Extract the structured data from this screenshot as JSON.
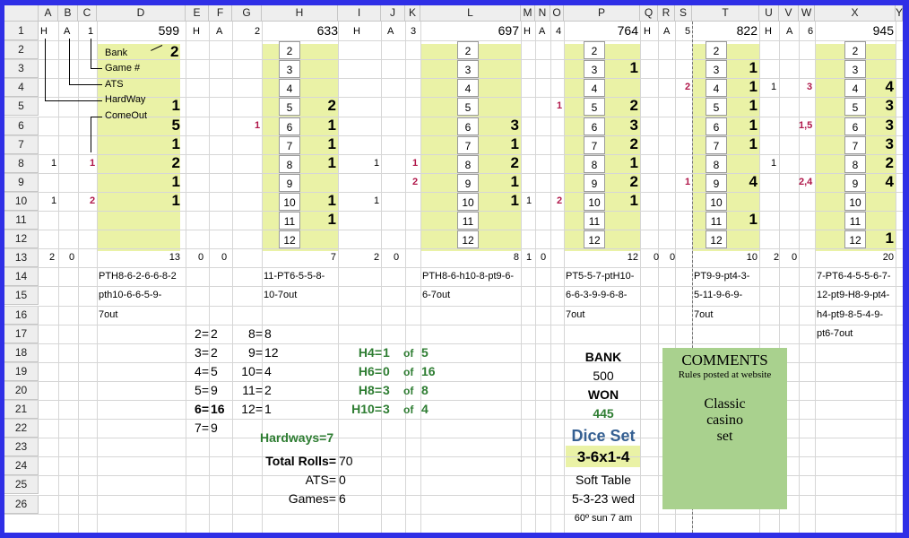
{
  "columns": [
    "A",
    "B",
    "C",
    "D",
    "E",
    "F",
    "G",
    "H",
    "I",
    "J",
    "K",
    "L",
    "M",
    "N",
    "O",
    "P",
    "Q",
    "R",
    "S",
    "T",
    "U",
    "V",
    "W",
    "X",
    "Y"
  ],
  "rows": [
    "1",
    "2",
    "3",
    "4",
    "5",
    "6",
    "7",
    "8",
    "9",
    "10",
    "11",
    "12",
    "13",
    "14",
    "15",
    "16",
    "17",
    "18",
    "19",
    "20",
    "21",
    "22",
    "23",
    "24",
    "25",
    "26"
  ],
  "row1": {
    "h": "H",
    "a": "A",
    "games": [
      "1",
      "2",
      "3",
      "4",
      "5",
      "6"
    ],
    "banks": [
      "599",
      "633",
      "697",
      "764",
      "822",
      "945"
    ]
  },
  "labels": {
    "bank": "Bank",
    "game": "Game #",
    "ats": "ATS",
    "hardway": "HardWay",
    "comeout": "ComeOut",
    "bank_value": "2"
  },
  "roll_numbers": [
    "2",
    "3",
    "4",
    "5",
    "6",
    "7",
    "8",
    "9",
    "10",
    "11",
    "12"
  ],
  "game1": {
    "counts": [
      "1",
      "5",
      "1",
      "2",
      "1",
      "1"
    ],
    "a8": "1",
    "c8": "1",
    "a10": "1",
    "c10": "2",
    "totals": [
      "2",
      "0",
      "13"
    ],
    "rolls": [
      "PTH8-6-2-6-6-8-2",
      "pth10-6-6-5-9-",
      "7out"
    ]
  },
  "game2": {
    "counts": [
      "2",
      "1",
      "1",
      "1",
      "1",
      "1"
    ],
    "g6": "1",
    "totals": [
      "0",
      "0",
      "7"
    ],
    "rolls": [
      "11-PT6-5-5-8-",
      "10-7out"
    ]
  },
  "game3": {
    "counts": [
      "3",
      "1",
      "2",
      "1",
      "1"
    ],
    "i8": "1",
    "k8": "1",
    "i10": "1",
    "k9": "2",
    "totals": [
      "2",
      "0",
      "8"
    ],
    "rolls": [
      "PTH8-6-h10-8-pt9-6-",
      "6-7out"
    ]
  },
  "game4": {
    "counts": [
      "1",
      "2",
      "3",
      "2",
      "1",
      "2",
      "1"
    ],
    "m10": "1",
    "o5": "1",
    "o10": "2",
    "totals": [
      "1",
      "0",
      "12"
    ],
    "rolls": [
      "PT5-5-7-ptH10-",
      "6-6-3-9-9-6-8-",
      "7out"
    ]
  },
  "game5": {
    "counts": [
      "1",
      "1",
      "1",
      "1",
      "1",
      "4",
      "1"
    ],
    "s4": "2",
    "s9": "1",
    "u4": "1",
    "u8": "1",
    "totals": [
      "0",
      "0",
      "10"
    ],
    "rolls": [
      "PT9-9-pt4-3-",
      "5-11-9-6-9-",
      "7out"
    ]
  },
  "game6": {
    "counts": [
      "4",
      "3",
      "3",
      "3",
      "2",
      "4",
      "1"
    ],
    "w4": "3",
    "w6": "1,5",
    "w9": "2,4",
    "totals": [
      "2",
      "0",
      "20"
    ],
    "rolls": [
      "7-PT6-4-5-5-6-7-",
      "12-pt9-H8-9-pt4-",
      "h4-pt9-8-5-4-9-",
      "pt6-7out"
    ]
  },
  "dist": {
    "left_labels": [
      "2=",
      "3=",
      "4=",
      "5=",
      "6=",
      "7="
    ],
    "left_vals": [
      "2",
      "2",
      "5",
      "9",
      "16",
      "9"
    ],
    "right_labels": [
      "8=",
      "9=",
      "10=",
      "11=",
      "12="
    ],
    "right_vals": [
      "8",
      "12",
      "4",
      "2",
      "1"
    ]
  },
  "hardways": {
    "labels": [
      "H4=",
      "H6=",
      "H8=",
      "H10="
    ],
    "vals": [
      "1",
      "0",
      "3",
      "3"
    ],
    "of": "of",
    "totals": [
      "5",
      "16",
      "8",
      "4"
    ],
    "sum_label": "Hardways=",
    "sum": "7"
  },
  "totals": {
    "rolls_label": "Total Rolls=",
    "rolls": "70",
    "ats_label": "ATS=",
    "ats": "0",
    "games_label": "Games=",
    "games": "6"
  },
  "bank": {
    "label": "BANK",
    "value": "500",
    "won_label": "WON",
    "won": "445",
    "dice_set_label": "Dice Set",
    "dice_set": "3-6x1-4",
    "table": "Soft Table",
    "date": "5-3-23 wed",
    "weather": "60º sun 7 am"
  },
  "comments": {
    "title": "COMMENTS",
    "subtitle": "Rules posted at website",
    "line1": "Classic",
    "line2": "casino",
    "line3": "set"
  },
  "colors": {
    "frame": "#2f2fe6",
    "highlight": "#eaf2a6",
    "comments_bg": "#a9d18e",
    "hardway_green": "#2e7d32",
    "dice_blue": "#366092",
    "pink": "#b0174a"
  }
}
